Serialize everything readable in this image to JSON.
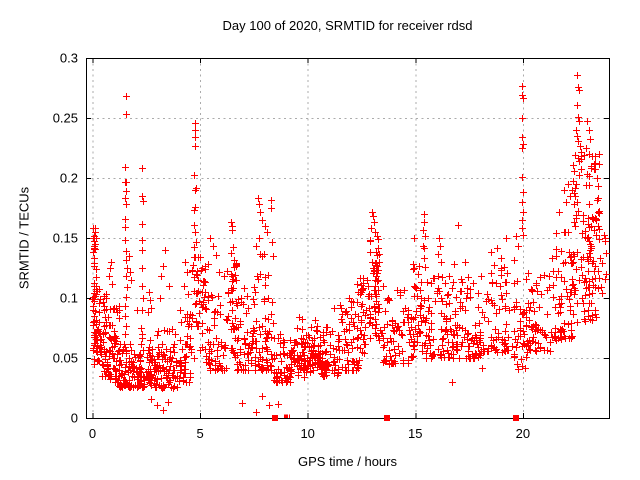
{
  "chart_data": {
    "type": "scatter",
    "title": "Day 100 of 2020, SRMTID for receiver rdsd",
    "xlabel": "GPS time / hours",
    "ylabel": "SRMTID / TECUs",
    "xlim": [
      -0.3,
      24.0
    ],
    "ylim": [
      0,
      0.3
    ],
    "xticks": [
      0,
      5,
      10,
      15,
      20
    ],
    "xtick_labels": [
      "0",
      "5",
      "10",
      "15",
      "20"
    ],
    "yticks": [
      0,
      0.05,
      0.1,
      0.15,
      0.2,
      0.25,
      0.3
    ],
    "ytick_labels": [
      "0",
      "0.05",
      "0.1",
      "0.15",
      "0.2",
      "0.25",
      "0.3"
    ],
    "grid": true,
    "legend": "none",
    "marker": "plus",
    "marker_color": "#ff0000",
    "marker_size": 7,
    "border_color": "#000000",
    "grid_color": "#ababab",
    "background": "#ffffff",
    "seed": 20201100,
    "points": [
      [
        0.03,
        0.158
      ],
      [
        0.1,
        0.1585
      ],
      [
        0.02,
        0.15
      ],
      [
        0.05,
        0.143
      ],
      [
        0.82,
        0.125
      ],
      [
        0.86,
        0.13
      ],
      [
        0.9,
        0.112
      ],
      [
        0.78,
        0.118
      ],
      [
        1.56,
        0.268
      ],
      [
        1.57,
        0.253
      ],
      [
        1.5,
        0.209
      ],
      [
        1.52,
        0.197
      ],
      [
        1.56,
        0.197
      ],
      [
        1.54,
        0.189
      ],
      [
        1.5,
        0.183
      ],
      [
        1.55,
        0.178
      ],
      [
        1.52,
        0.166
      ],
      [
        1.53,
        0.159
      ],
      [
        1.5,
        0.148
      ],
      [
        1.55,
        0.139
      ],
      [
        1.58,
        0.132
      ],
      [
        1.6,
        0.125
      ],
      [
        1.54,
        0.118
      ],
      [
        1.62,
        0.109
      ],
      [
        1.56,
        0.101
      ],
      [
        1.5,
        0.093
      ],
      [
        1.53,
        0.085
      ],
      [
        1.55,
        0.077
      ],
      [
        1.51,
        0.07
      ],
      [
        1.7,
        0.135
      ],
      [
        1.75,
        0.122
      ],
      [
        1.8,
        0.115
      ],
      [
        2.29,
        0.208
      ],
      [
        2.3,
        0.185
      ],
      [
        2.33,
        0.181
      ],
      [
        2.31,
        0.162
      ],
      [
        2.28,
        0.148
      ],
      [
        2.32,
        0.14
      ],
      [
        2.3,
        0.125
      ],
      [
        2.29,
        0.11
      ],
      [
        2.34,
        0.1
      ],
      [
        2.3,
        0.09
      ],
      [
        2.27,
        0.075
      ],
      [
        2.05,
        0.09
      ],
      [
        2.62,
        0.105
      ],
      [
        2.68,
        0.098
      ],
      [
        2.72,
        0.092
      ],
      [
        2.58,
        0.088
      ],
      [
        3.37,
        0.14
      ],
      [
        3.28,
        0.127
      ],
      [
        3.2,
        0.118
      ],
      [
        3.55,
        0.11
      ],
      [
        3.15,
        0.1
      ],
      [
        4.3,
        0.13
      ],
      [
        4.4,
        0.122
      ],
      [
        4.25,
        0.11
      ],
      [
        4.45,
        0.103
      ],
      [
        4.75,
        0.246
      ],
      [
        4.77,
        0.24
      ],
      [
        4.76,
        0.234
      ],
      [
        4.78,
        0.227
      ],
      [
        4.72,
        0.2025
      ],
      [
        4.8,
        0.192
      ],
      [
        4.75,
        0.19
      ],
      [
        4.76,
        0.176
      ],
      [
        4.74,
        0.173
      ],
      [
        4.7,
        0.161
      ],
      [
        4.78,
        0.155
      ],
      [
        4.8,
        0.147
      ],
      [
        4.73,
        0.1425
      ],
      [
        4.77,
        0.134
      ],
      [
        5.45,
        0.15
      ],
      [
        5.6,
        0.143
      ],
      [
        5.75,
        0.136
      ],
      [
        5.35,
        0.128
      ],
      [
        5.9,
        0.122
      ],
      [
        6.1,
        0.118
      ],
      [
        6.45,
        0.163
      ],
      [
        6.5,
        0.16
      ],
      [
        6.48,
        0.157
      ],
      [
        6.52,
        0.1425
      ],
      [
        6.42,
        0.1375
      ],
      [
        7.7,
        0.183
      ],
      [
        7.75,
        0.178
      ],
      [
        7.78,
        0.172
      ],
      [
        8.3,
        0.182
      ],
      [
        8.28,
        0.175
      ],
      [
        7.9,
        0.165
      ],
      [
        8.0,
        0.16
      ],
      [
        8.1,
        0.155
      ],
      [
        7.72,
        0.15
      ],
      [
        8.32,
        0.147
      ],
      [
        2.7,
        0.016
      ],
      [
        3.0,
        0.011
      ],
      [
        3.3,
        0.007
      ],
      [
        3.5,
        0.013
      ],
      [
        6.95,
        0.0125
      ],
      [
        7.6,
        0.005
      ],
      [
        8.2,
        0.011
      ],
      [
        7.9,
        0.018
      ],
      [
        8.6,
        0.012
      ],
      [
        11.2,
        0.092
      ],
      [
        12.3,
        0.112
      ],
      [
        12.35,
        0.105
      ],
      [
        13.0,
        0.172
      ],
      [
        13.05,
        0.168
      ],
      [
        13.1,
        0.163
      ],
      [
        12.95,
        0.158
      ],
      [
        13.15,
        0.155
      ],
      [
        13.2,
        0.152
      ],
      [
        15.4,
        0.17
      ],
      [
        15.42,
        0.163
      ],
      [
        15.38,
        0.157
      ],
      [
        15.45,
        0.152
      ],
      [
        16.1,
        0.15
      ],
      [
        16.15,
        0.143
      ],
      [
        16.05,
        0.137
      ],
      [
        16.2,
        0.13
      ],
      [
        17.0,
        0.161
      ],
      [
        17.3,
        0.13
      ],
      [
        16.8,
        0.128
      ],
      [
        16.7,
        0.03
      ],
      [
        19.2,
        0.15
      ],
      [
        18.8,
        0.142
      ],
      [
        18.5,
        0.138
      ],
      [
        19.0,
        0.133
      ],
      [
        18.1,
        0.042
      ],
      [
        19.7,
        0.152
      ],
      [
        19.75,
        0.143
      ],
      [
        19.6,
        0.132
      ],
      [
        19.95,
        0.277
      ],
      [
        19.97,
        0.2695
      ],
      [
        20.0,
        0.267
      ],
      [
        19.96,
        0.25
      ],
      [
        19.98,
        0.234
      ],
      [
        20.0,
        0.2285
      ],
      [
        19.95,
        0.225
      ],
      [
        19.97,
        0.201
      ],
      [
        20.0,
        0.188
      ],
      [
        19.96,
        0.18
      ],
      [
        19.99,
        0.172
      ],
      [
        19.94,
        0.165
      ],
      [
        19.98,
        0.158
      ],
      [
        20.0,
        0.1525
      ],
      [
        21.9,
        0.19
      ],
      [
        22.0,
        0.18
      ],
      [
        22.1,
        0.195
      ],
      [
        21.7,
        0.172
      ],
      [
        22.2,
        0.185
      ],
      [
        22.5,
        0.286
      ],
      [
        22.55,
        0.276
      ],
      [
        22.6,
        0.273
      ],
      [
        22.5,
        0.2608
      ],
      [
        22.55,
        0.2508
      ],
      [
        22.62,
        0.2475
      ],
      [
        22.45,
        0.24
      ],
      [
        22.5,
        0.235
      ],
      [
        22.58,
        0.231
      ],
      [
        22.65,
        0.227
      ],
      [
        22.7,
        0.222
      ],
      [
        22.4,
        0.2194
      ],
      [
        23.0,
        0.2475
      ],
      [
        23.05,
        0.24
      ],
      [
        23.1,
        0.2325
      ],
      [
        22.95,
        0.225
      ],
      [
        23.2,
        0.218
      ],
      [
        23.3,
        0.212
      ],
      [
        23.45,
        0.2
      ],
      [
        23.5,
        0.193
      ]
    ],
    "clusters": [
      [
        0.0,
        0.18,
        0.055,
        0.157,
        46,
        "uniform"
      ],
      [
        0.05,
        0.45,
        0.045,
        0.125,
        40,
        "bottom"
      ],
      [
        0.45,
        0.8,
        0.035,
        0.105,
        45,
        "bottom"
      ],
      [
        0.8,
        1.25,
        0.03,
        0.095,
        52,
        "bottom"
      ],
      [
        1.25,
        1.8,
        0.026,
        0.062,
        52,
        "bottom"
      ],
      [
        1.8,
        2.25,
        0.026,
        0.055,
        45,
        "bottom"
      ],
      [
        2.25,
        3.0,
        0.026,
        0.07,
        62,
        "bottom"
      ],
      [
        3.0,
        4.0,
        0.025,
        0.075,
        72,
        "bottom"
      ],
      [
        4.0,
        4.6,
        0.03,
        0.09,
        48,
        "bottom"
      ],
      [
        4.6,
        5.25,
        0.05,
        0.135,
        48,
        "uniform"
      ],
      [
        5.25,
        6.25,
        0.04,
        0.105,
        55,
        "bottom"
      ],
      [
        6.25,
        6.7,
        0.05,
        0.135,
        40,
        "uniform"
      ],
      [
        6.7,
        7.6,
        0.04,
        0.115,
        62,
        "bottom"
      ],
      [
        7.6,
        8.4,
        0.04,
        0.145,
        58,
        "bottom"
      ],
      [
        8.4,
        9.2,
        0.03,
        0.08,
        52,
        "bottom"
      ],
      [
        9.2,
        10.6,
        0.032,
        0.068,
        112,
        "center"
      ],
      [
        9.3,
        10.5,
        0.065,
        0.085,
        14,
        "uniform"
      ],
      [
        10.6,
        11.5,
        0.035,
        0.08,
        58,
        "bottom"
      ],
      [
        11.5,
        12.4,
        0.04,
        0.1,
        58,
        "bottom"
      ],
      [
        12.4,
        12.9,
        0.05,
        0.12,
        38,
        "uniform"
      ],
      [
        12.9,
        13.35,
        0.06,
        0.15,
        48,
        "uniform"
      ],
      [
        13.35,
        14.7,
        0.045,
        0.11,
        68,
        "bottom"
      ],
      [
        14.7,
        14.9,
        0.05,
        0.1,
        12,
        "bottom"
      ],
      [
        14.9,
        15.45,
        0.055,
        0.15,
        42,
        "uniform"
      ],
      [
        15.45,
        16.5,
        0.05,
        0.12,
        58,
        "bottom"
      ],
      [
        16.5,
        18.0,
        0.05,
        0.12,
        88,
        "bottom"
      ],
      [
        18.0,
        19.35,
        0.055,
        0.13,
        72,
        "bottom"
      ],
      [
        19.5,
        19.9,
        0.04,
        0.12,
        22,
        "uniform"
      ],
      [
        19.9,
        20.15,
        0.037,
        0.1,
        16,
        "uniform"
      ],
      [
        20.15,
        21.3,
        0.055,
        0.125,
        58,
        "bottom"
      ],
      [
        21.3,
        22.3,
        0.065,
        0.16,
        66,
        "bottom"
      ],
      [
        22.3,
        23.55,
        0.08,
        0.22,
        128,
        "uniform"
      ],
      [
        23.55,
        23.9,
        0.1,
        0.155,
        10,
        "uniform"
      ]
    ],
    "zero_blocks": [
      8.46,
      13.69,
      19.69
    ],
    "zero_ticks": [
      8.88,
      8.94,
      9.0,
      9.06,
      9.12
    ]
  }
}
